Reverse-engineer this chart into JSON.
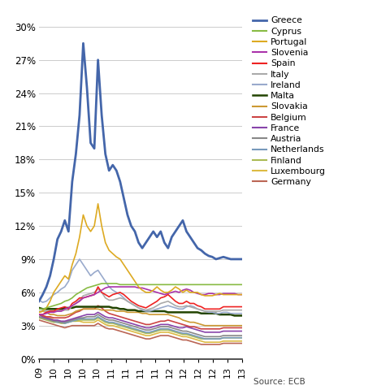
{
  "source": "Source: ECB",
  "ylim": [
    0,
    31
  ],
  "yticks": [
    0,
    3,
    6,
    9,
    12,
    15,
    18,
    21,
    24,
    27,
    30
  ],
  "background_color": "#ffffff",
  "countries": [
    "Greece",
    "Cyprus",
    "Portugal",
    "Slovenia",
    "Spain",
    "Italy",
    "Ireland",
    "Malta",
    "Slovakia",
    "Belgium",
    "France",
    "Austria",
    "Netherlands",
    "Finland",
    "Luxembourg",
    "Germany"
  ],
  "colors": {
    "Greece": "#4466aa",
    "Cyprus": "#88bb44",
    "Portugal": "#ddaa22",
    "Slovenia": "#aa33aa",
    "Spain": "#ee2222",
    "Italy": "#aaaaaa",
    "Ireland": "#99aacc",
    "Malta": "#224400",
    "Slovakia": "#cc9933",
    "Belgium": "#cc4444",
    "France": "#8844aa",
    "Austria": "#888888",
    "Netherlands": "#7799bb",
    "Finland": "#aabb55",
    "Luxembourg": "#ddbb44",
    "Germany": "#bb6655"
  },
  "x_labels": [
    "09",
    "10",
    "10",
    "10",
    "10",
    "11",
    "11",
    "11",
    "11",
    "12",
    "12",
    "12",
    "12",
    "13",
    "13"
  ],
  "n_points": 56,
  "data": {
    "Greece": [
      5.2,
      5.8,
      6.5,
      7.5,
      9.0,
      10.8,
      11.5,
      12.5,
      11.5,
      16.0,
      18.5,
      22.0,
      28.5,
      24.5,
      19.5,
      19.0,
      27.0,
      22.0,
      18.5,
      17.0,
      17.5,
      17.0,
      16.0,
      14.5,
      13.0,
      12.0,
      11.5,
      10.5,
      10.0,
      10.5,
      11.0,
      11.5,
      11.0,
      11.5,
      10.5,
      10.0,
      11.0,
      11.5,
      12.0,
      12.5,
      11.5,
      11.0,
      10.5,
      10.0,
      9.8,
      9.5,
      9.3,
      9.2,
      9.0,
      9.1,
      9.2,
      9.1,
      9.0,
      9.0,
      9.0,
      9.0
    ],
    "Cyprus": [
      4.5,
      4.5,
      4.6,
      4.7,
      4.8,
      4.9,
      5.0,
      5.2,
      5.3,
      5.5,
      5.8,
      6.0,
      6.2,
      6.4,
      6.5,
      6.6,
      6.7,
      6.8,
      6.8,
      6.8,
      6.8,
      6.8,
      6.7,
      6.7,
      6.7,
      6.7,
      6.7,
      6.7,
      6.7,
      6.7,
      6.7,
      6.7,
      6.7,
      6.7,
      6.7,
      6.7,
      6.7,
      6.7,
      6.7,
      6.7,
      6.7,
      6.7,
      6.7,
      6.7,
      6.7,
      6.7,
      6.7,
      6.7,
      6.7,
      6.7,
      6.7,
      6.7,
      6.7,
      6.7,
      6.7,
      6.7
    ],
    "Portugal": [
      4.2,
      4.3,
      4.6,
      5.2,
      6.0,
      6.5,
      7.0,
      7.5,
      7.2,
      8.5,
      9.5,
      11.0,
      13.0,
      12.0,
      11.5,
      12.0,
      14.0,
      12.0,
      10.5,
      9.8,
      9.5,
      9.2,
      9.0,
      8.5,
      8.0,
      7.5,
      7.0,
      6.5,
      6.2,
      6.0,
      6.0,
      6.2,
      6.5,
      6.2,
      6.0,
      6.0,
      6.2,
      6.5,
      6.3,
      6.0,
      6.2,
      6.0,
      6.0,
      6.0,
      5.8,
      5.7,
      5.7,
      5.7,
      5.8,
      5.9,
      5.8,
      5.8,
      5.8,
      5.8,
      5.8,
      5.8
    ],
    "Slovenia": [
      4.0,
      4.0,
      4.1,
      4.2,
      4.2,
      4.3,
      4.3,
      4.5,
      4.6,
      4.8,
      5.0,
      5.2,
      5.5,
      5.6,
      5.7,
      5.8,
      6.0,
      6.2,
      6.4,
      6.5,
      6.5,
      6.5,
      6.5,
      6.5,
      6.5,
      6.5,
      6.5,
      6.4,
      6.4,
      6.3,
      6.2,
      6.1,
      6.0,
      5.9,
      5.8,
      5.9,
      6.0,
      6.1,
      6.0,
      6.2,
      6.3,
      6.2,
      6.0,
      5.9,
      5.8,
      5.8,
      5.9,
      5.9,
      5.8,
      5.8,
      5.9,
      5.9,
      5.9,
      5.9,
      5.8,
      5.8
    ],
    "Spain": [
      4.0,
      4.0,
      4.2,
      4.3,
      4.3,
      4.5,
      4.6,
      4.7,
      4.5,
      5.0,
      5.2,
      5.5,
      5.5,
      5.6,
      5.7,
      5.8,
      6.5,
      6.0,
      5.8,
      5.6,
      5.8,
      5.9,
      6.0,
      5.8,
      5.5,
      5.2,
      5.0,
      4.8,
      4.7,
      4.6,
      4.8,
      5.0,
      5.2,
      5.5,
      5.6,
      5.8,
      5.5,
      5.2,
      5.0,
      5.0,
      5.2,
      5.0,
      5.0,
      4.8,
      4.7,
      4.5,
      4.5,
      4.5,
      4.5,
      4.5,
      4.7,
      4.7,
      4.7,
      4.7,
      4.7,
      4.7
    ],
    "Italy": [
      4.3,
      4.3,
      4.3,
      4.3,
      4.3,
      4.3,
      4.3,
      4.4,
      4.4,
      4.8,
      5.0,
      5.3,
      5.7,
      5.8,
      5.9,
      6.0,
      6.3,
      6.0,
      5.5,
      5.3,
      5.3,
      5.4,
      5.5,
      5.4,
      5.2,
      5.0,
      4.8,
      4.6,
      4.5,
      4.4,
      4.5,
      4.6,
      4.8,
      5.0,
      5.1,
      5.2,
      5.0,
      4.8,
      4.7,
      4.7,
      4.8,
      4.7,
      4.6,
      4.5,
      4.4,
      4.3,
      4.3,
      4.3,
      4.3,
      4.3,
      4.4,
      4.4,
      4.4,
      4.4,
      4.4,
      4.4
    ],
    "Ireland": [
      5.3,
      5.1,
      5.2,
      5.5,
      5.8,
      6.0,
      6.3,
      6.5,
      7.0,
      8.0,
      8.5,
      9.0,
      8.5,
      8.0,
      7.5,
      7.8,
      8.0,
      7.5,
      7.0,
      6.5,
      6.2,
      6.0,
      5.8,
      5.5,
      5.2,
      5.0,
      4.8,
      4.6,
      4.4,
      4.3,
      4.3,
      4.4,
      4.5,
      4.6,
      4.7,
      4.8,
      4.7,
      4.6,
      4.5,
      4.5,
      4.7,
      4.8,
      4.7,
      4.5,
      4.4,
      4.3,
      4.2,
      4.2,
      4.1,
      4.1,
      4.2,
      4.2,
      4.1,
      4.1,
      4.1,
      4.1
    ],
    "Malta": [
      4.6,
      4.5,
      4.5,
      4.5,
      4.5,
      4.5,
      4.5,
      4.6,
      4.6,
      4.6,
      4.7,
      4.7,
      4.7,
      4.7,
      4.7,
      4.7,
      4.7,
      4.7,
      4.7,
      4.7,
      4.6,
      4.6,
      4.5,
      4.5,
      4.4,
      4.4,
      4.4,
      4.3,
      4.3,
      4.3,
      4.3,
      4.3,
      4.3,
      4.3,
      4.3,
      4.2,
      4.2,
      4.2,
      4.2,
      4.2,
      4.2,
      4.2,
      4.2,
      4.2,
      4.1,
      4.1,
      4.1,
      4.1,
      4.1,
      4.0,
      4.0,
      4.0,
      4.0,
      3.9,
      3.9,
      3.9
    ],
    "Slovakia": [
      4.2,
      4.3,
      4.2,
      4.0,
      4.0,
      3.9,
      3.9,
      3.9,
      4.0,
      4.1,
      4.3,
      4.4,
      4.5,
      4.5,
      4.5,
      4.5,
      4.5,
      4.4,
      4.4,
      4.4,
      4.4,
      4.3,
      4.3,
      4.3,
      4.2,
      4.2,
      4.2,
      4.2,
      4.1,
      4.1,
      4.0,
      4.0,
      4.0,
      4.0,
      4.0,
      4.0,
      3.9,
      3.8,
      3.7,
      3.5,
      3.4,
      3.3,
      3.3,
      3.2,
      3.1,
      3.0,
      3.0,
      3.0,
      3.0,
      3.0,
      3.0,
      3.0,
      3.0,
      3.0,
      3.0,
      3.0
    ],
    "Belgium": [
      4.0,
      3.9,
      3.8,
      3.8,
      3.7,
      3.7,
      3.7,
      3.7,
      3.8,
      4.0,
      4.2,
      4.3,
      4.5,
      4.5,
      4.5,
      4.5,
      4.8,
      4.6,
      4.3,
      4.1,
      4.0,
      3.9,
      3.8,
      3.7,
      3.6,
      3.5,
      3.4,
      3.3,
      3.2,
      3.1,
      3.1,
      3.2,
      3.3,
      3.4,
      3.4,
      3.5,
      3.4,
      3.3,
      3.2,
      3.1,
      3.0,
      2.9,
      2.9,
      2.8,
      2.7,
      2.7,
      2.7,
      2.7,
      2.7,
      2.7,
      2.8,
      2.8,
      2.8,
      2.8,
      2.8,
      2.8
    ],
    "France": [
      4.0,
      3.8,
      3.7,
      3.6,
      3.5,
      3.5,
      3.4,
      3.4,
      3.5,
      3.6,
      3.7,
      3.8,
      3.9,
      4.0,
      4.0,
      4.0,
      4.2,
      4.0,
      3.8,
      3.7,
      3.7,
      3.6,
      3.5,
      3.4,
      3.3,
      3.2,
      3.1,
      3.0,
      2.9,
      2.8,
      2.8,
      2.9,
      3.0,
      3.1,
      3.1,
      3.1,
      3.0,
      2.9,
      2.8,
      2.8,
      2.9,
      2.8,
      2.7,
      2.6,
      2.5,
      2.4,
      2.4,
      2.4,
      2.4,
      2.4,
      2.5,
      2.5,
      2.5,
      2.5,
      2.5,
      2.5
    ],
    "Austria": [
      3.8,
      3.7,
      3.6,
      3.5,
      3.4,
      3.4,
      3.3,
      3.3,
      3.4,
      3.5,
      3.6,
      3.7,
      3.7,
      3.8,
      3.8,
      3.8,
      4.0,
      3.8,
      3.6,
      3.5,
      3.5,
      3.4,
      3.3,
      3.2,
      3.1,
      3.0,
      2.9,
      2.8,
      2.7,
      2.6,
      2.6,
      2.7,
      2.8,
      2.9,
      2.9,
      2.9,
      2.8,
      2.7,
      2.6,
      2.5,
      2.5,
      2.4,
      2.3,
      2.2,
      2.1,
      2.0,
      2.0,
      2.0,
      2.0,
      2.0,
      2.1,
      2.1,
      2.1,
      2.1,
      2.1,
      2.1
    ],
    "Netherlands": [
      3.8,
      3.7,
      3.6,
      3.5,
      3.4,
      3.3,
      3.3,
      3.2,
      3.3,
      3.4,
      3.5,
      3.6,
      3.6,
      3.6,
      3.6,
      3.6,
      3.8,
      3.6,
      3.4,
      3.3,
      3.3,
      3.2,
      3.1,
      3.0,
      2.9,
      2.8,
      2.7,
      2.6,
      2.5,
      2.4,
      2.4,
      2.5,
      2.6,
      2.7,
      2.7,
      2.7,
      2.6,
      2.5,
      2.4,
      2.3,
      2.3,
      2.2,
      2.1,
      2.0,
      1.9,
      1.8,
      1.8,
      1.8,
      1.8,
      1.8,
      1.9,
      1.9,
      1.9,
      1.9,
      1.9,
      1.9
    ],
    "Finland": [
      3.7,
      3.6,
      3.5,
      3.4,
      3.3,
      3.3,
      3.2,
      3.2,
      3.3,
      3.4,
      3.4,
      3.5,
      3.5,
      3.5,
      3.5,
      3.5,
      3.7,
      3.5,
      3.3,
      3.2,
      3.2,
      3.1,
      3.0,
      2.9,
      2.8,
      2.7,
      2.6,
      2.5,
      2.4,
      2.3,
      2.3,
      2.4,
      2.5,
      2.6,
      2.6,
      2.6,
      2.5,
      2.4,
      2.3,
      2.2,
      2.2,
      2.1,
      2.0,
      1.9,
      1.8,
      1.8,
      1.8,
      1.8,
      1.8,
      1.8,
      1.9,
      1.9,
      1.9,
      1.9,
      1.9,
      1.9
    ],
    "Luxembourg": [
      4.0,
      3.9,
      3.8,
      3.7,
      3.5,
      3.4,
      3.3,
      3.3,
      3.4,
      3.4,
      3.4,
      3.4,
      3.3,
      3.3,
      3.3,
      3.3,
      3.5,
      3.3,
      3.1,
      3.0,
      3.0,
      2.9,
      2.8,
      2.7,
      2.6,
      2.5,
      2.4,
      2.3,
      2.2,
      2.1,
      2.1,
      2.2,
      2.3,
      2.4,
      2.4,
      2.4,
      2.3,
      2.2,
      2.1,
      2.0,
      2.0,
      1.9,
      1.8,
      1.7,
      1.6,
      1.5,
      1.5,
      1.5,
      1.5,
      1.5,
      1.6,
      1.6,
      1.6,
      1.6,
      1.6,
      1.6
    ],
    "Germany": [
      3.5,
      3.4,
      3.3,
      3.2,
      3.1,
      3.0,
      2.9,
      2.8,
      2.9,
      3.0,
      3.0,
      3.0,
      3.0,
      3.0,
      3.0,
      3.0,
      3.2,
      3.0,
      2.8,
      2.7,
      2.7,
      2.6,
      2.5,
      2.4,
      2.3,
      2.2,
      2.1,
      2.0,
      1.9,
      1.8,
      1.8,
      1.9,
      2.0,
      2.1,
      2.1,
      2.1,
      2.0,
      1.9,
      1.8,
      1.7,
      1.7,
      1.6,
      1.5,
      1.4,
      1.3,
      1.3,
      1.3,
      1.3,
      1.3,
      1.3,
      1.4,
      1.4,
      1.4,
      1.4,
      1.4,
      1.4
    ]
  }
}
